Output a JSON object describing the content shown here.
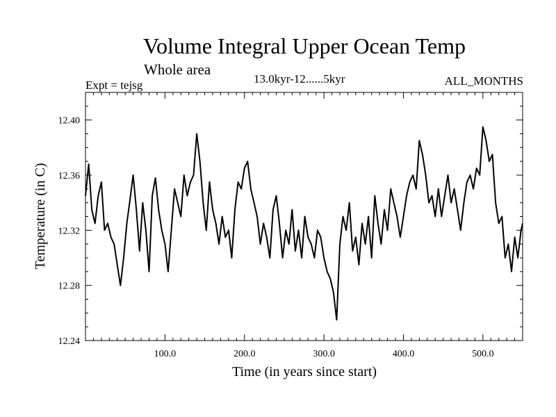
{
  "header": {
    "title": "Volume Integral Upper Ocean Temp",
    "subtitle_left": "Whole area",
    "subtitle_center": "13.0kyr-12......5kyr",
    "label_left": "Expt = tejsg",
    "label_right": "ALL_MONTHS"
  },
  "chart_data": {
    "type": "line",
    "title": "Volume Integral Upper Ocean Temp",
    "xlabel": "Time (in years since start)",
    "ylabel": "Temperature (in C)",
    "xlim": [
      0,
      550
    ],
    "ylim": [
      12.24,
      12.42
    ],
    "xticks": [
      100.0,
      200.0,
      300.0,
      400.0,
      500.0
    ],
    "xtick_labels": [
      "100.0",
      "200.0",
      "300.0",
      "400.0",
      "500.0"
    ],
    "yticks": [
      12.24,
      12.28,
      12.32,
      12.36,
      12.4
    ],
    "ytick_labels": [
      "12.24",
      "12.28",
      "12.32",
      "12.36",
      "12.40"
    ],
    "grid": false,
    "series": [
      {
        "name": "tejsg",
        "color": "#000000",
        "x": [
          0,
          4,
          8,
          12,
          16,
          20,
          24,
          28,
          32,
          36,
          40,
          44,
          48,
          52,
          56,
          60,
          64,
          68,
          72,
          76,
          80,
          84,
          88,
          92,
          96,
          100,
          104,
          108,
          112,
          116,
          120,
          124,
          128,
          132,
          136,
          140,
          144,
          148,
          152,
          156,
          160,
          164,
          168,
          172,
          176,
          180,
          184,
          188,
          192,
          196,
          200,
          204,
          208,
          212,
          216,
          220,
          224,
          228,
          232,
          236,
          240,
          244,
          248,
          252,
          256,
          260,
          264,
          268,
          272,
          276,
          280,
          284,
          288,
          292,
          296,
          300,
          304,
          308,
          312,
          316,
          320,
          324,
          328,
          332,
          336,
          340,
          344,
          348,
          352,
          356,
          360,
          364,
          368,
          372,
          376,
          380,
          384,
          388,
          392,
          396,
          400,
          404,
          408,
          412,
          416,
          420,
          424,
          428,
          432,
          436,
          440,
          444,
          448,
          452,
          456,
          460,
          464,
          468,
          472,
          476,
          480,
          484,
          488,
          492,
          496,
          500,
          504,
          508,
          512,
          516,
          520,
          524,
          528,
          532,
          536,
          540,
          544,
          548,
          550
        ],
        "values": [
          12.345,
          12.368,
          12.335,
          12.325,
          12.345,
          12.355,
          12.32,
          12.325,
          12.315,
          12.31,
          12.295,
          12.28,
          12.3,
          12.325,
          12.342,
          12.36,
          12.335,
          12.305,
          12.34,
          12.32,
          12.29,
          12.345,
          12.358,
          12.335,
          12.32,
          12.31,
          12.29,
          12.32,
          12.35,
          12.34,
          12.33,
          12.36,
          12.345,
          12.355,
          12.36,
          12.39,
          12.37,
          12.34,
          12.32,
          12.355,
          12.335,
          12.325,
          12.31,
          12.33,
          12.315,
          12.32,
          12.3,
          12.335,
          12.355,
          12.35,
          12.365,
          12.37,
          12.35,
          12.34,
          12.33,
          12.31,
          12.325,
          12.315,
          12.3,
          12.335,
          12.345,
          12.325,
          12.3,
          12.32,
          12.31,
          12.335,
          12.305,
          12.32,
          12.3,
          12.33,
          12.315,
          12.31,
          12.3,
          12.32,
          12.315,
          12.3,
          12.29,
          12.285,
          12.275,
          12.255,
          12.31,
          12.33,
          12.32,
          12.34,
          12.305,
          12.315,
          12.295,
          12.325,
          12.31,
          12.33,
          12.3,
          12.345,
          12.325,
          12.31,
          12.335,
          12.32,
          12.35,
          12.34,
          12.33,
          12.315,
          12.33,
          12.345,
          12.355,
          12.36,
          12.35,
          12.385,
          12.375,
          12.36,
          12.34,
          12.345,
          12.33,
          12.35,
          12.33,
          12.345,
          12.36,
          12.34,
          12.35,
          12.335,
          12.32,
          12.34,
          12.355,
          12.36,
          12.35,
          12.365,
          12.36,
          12.395,
          12.385,
          12.37,
          12.375,
          12.34,
          12.325,
          12.33,
          12.3,
          12.31,
          12.29,
          12.315,
          12.3,
          12.32,
          12.325
        ]
      }
    ]
  }
}
